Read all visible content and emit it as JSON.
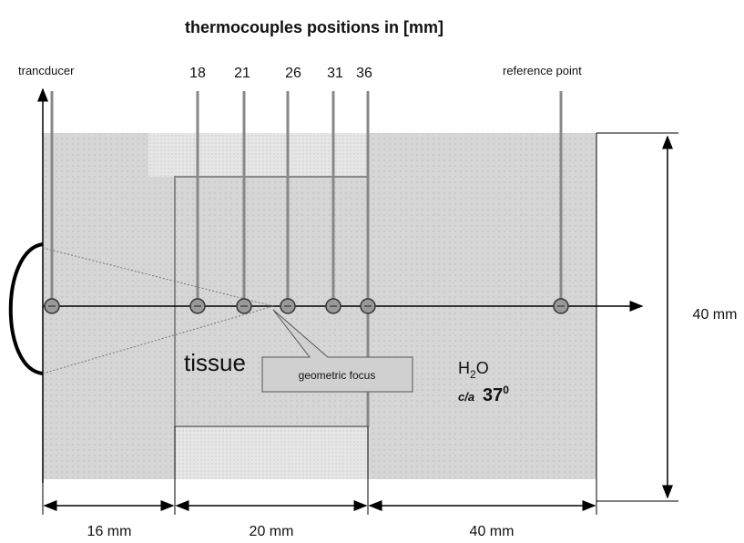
{
  "title": "thermocouples positions in [mm]",
  "transducer": "trancducer",
  "reference": "reference point",
  "thermocouples": [
    "18",
    "21",
    "26",
    "31",
    "36"
  ],
  "tissue": "tissue",
  "focus": "geometric focus",
  "medium": {
    "name": "H",
    "sub": "2",
    "rest": "O"
  },
  "temperature": {
    "prefix": "c/a",
    "value": "37",
    "sup": "0"
  },
  "dimensions": {
    "height": "40 mm",
    "segments": [
      "16 mm",
      "20 mm",
      "40 mm"
    ]
  }
}
